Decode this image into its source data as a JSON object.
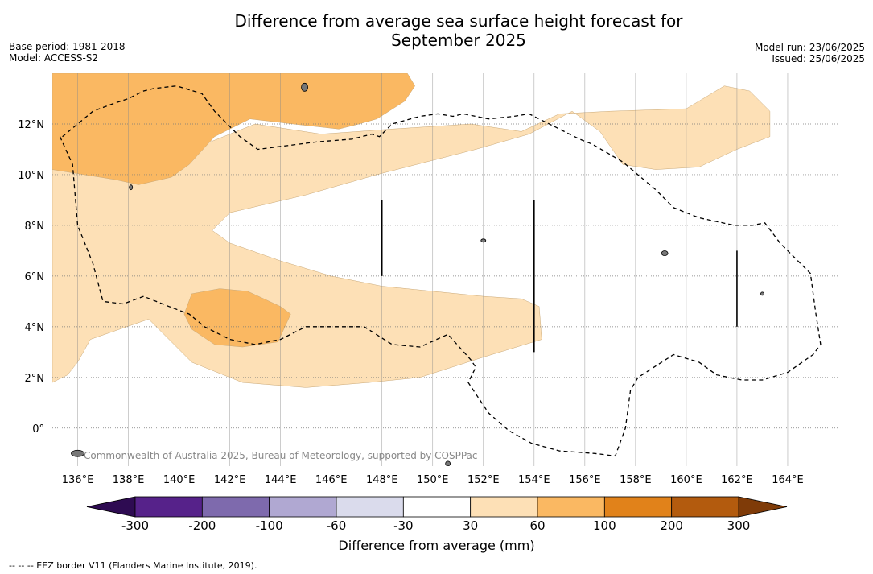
{
  "title_line1": "Difference from average sea surface height forecast for",
  "title_line2": "September 2025",
  "meta": {
    "base_period": "Base period: 1981-2018",
    "model": "Model: ACCESS-S2",
    "model_run": "Model run: 23/06/2025",
    "issued": "Issued: 25/06/2025"
  },
  "credit": "Commonwealth of Australia 2025, Bureau of Meteorology, supported by COSPPac",
  "footnote": "--  --  -- EEZ border V11 (Flanders Marine Institute, 2019).",
  "map": {
    "lon_range": [
      135,
      166
    ],
    "lat_range": [
      -1.5,
      14
    ],
    "lon_ticks": [
      {
        "value": 136,
        "label": "136°E"
      },
      {
        "value": 138,
        "label": "138°E"
      },
      {
        "value": 140,
        "label": "140°E"
      },
      {
        "value": 142,
        "label": "142°E"
      },
      {
        "value": 144,
        "label": "144°E"
      },
      {
        "value": 146,
        "label": "146°E"
      },
      {
        "value": 148,
        "label": "148°E"
      },
      {
        "value": 150,
        "label": "150°E"
      },
      {
        "value": 152,
        "label": "152°E"
      },
      {
        "value": 154,
        "label": "154°E"
      },
      {
        "value": 156,
        "label": "156°E"
      },
      {
        "value": 158,
        "label": "158°E"
      },
      {
        "value": 160,
        "label": "160°E"
      },
      {
        "value": 162,
        "label": "162°E"
      },
      {
        "value": 164,
        "label": "164°E"
      }
    ],
    "lat_ticks": [
      {
        "value": 0,
        "label": "0°"
      },
      {
        "value": 2,
        "label": "2°N"
      },
      {
        "value": 4,
        "label": "4°N"
      },
      {
        "value": 6,
        "label": "6°N"
      },
      {
        "value": 8,
        "label": "8°N"
      },
      {
        "value": 10,
        "label": "10°N"
      },
      {
        "value": 12,
        "label": "12°N"
      }
    ],
    "anomaly_zones": [
      {
        "class": "30 to 60",
        "color": "#fde0b6",
        "polygon": [
          [
            135,
            10.2
          ],
          [
            136,
            10.3
          ],
          [
            137.5,
            10.1
          ],
          [
            138.5,
            9.8
          ],
          [
            139.5,
            9.9
          ],
          [
            141,
            11.2
          ],
          [
            143,
            12
          ],
          [
            145.6,
            11.6
          ],
          [
            148.4,
            11.8
          ],
          [
            151.5,
            12
          ],
          [
            153.5,
            11.7
          ],
          [
            155,
            12.4
          ],
          [
            157,
            12.5
          ],
          [
            160,
            12.6
          ],
          [
            161.5,
            13.5
          ],
          [
            162.5,
            13.3
          ],
          [
            163.3,
            12.5
          ],
          [
            163.3,
            11.5
          ],
          [
            162,
            11
          ],
          [
            160.5,
            10.3
          ],
          [
            158.8,
            10.2
          ],
          [
            157.5,
            10.4
          ],
          [
            156.6,
            11.7
          ],
          [
            155.5,
            12.5
          ],
          [
            153.8,
            11.6
          ],
          [
            151.7,
            11
          ],
          [
            147.8,
            10
          ],
          [
            145,
            9.2
          ],
          [
            142,
            8.5
          ],
          [
            141.3,
            7.8
          ],
          [
            142,
            7.3
          ],
          [
            144,
            6.6
          ],
          [
            146,
            6
          ],
          [
            148,
            5.6
          ],
          [
            150,
            5.4
          ],
          [
            152,
            5.2
          ],
          [
            153.5,
            5.1
          ],
          [
            154.2,
            4.8
          ],
          [
            154.3,
            3.5
          ],
          [
            152,
            2.8
          ],
          [
            149.5,
            2
          ],
          [
            147.5,
            1.8
          ],
          [
            145,
            1.6
          ],
          [
            142.5,
            1.8
          ],
          [
            140.5,
            2.6
          ],
          [
            138.8,
            4.3
          ],
          [
            136.5,
            3.5
          ],
          [
            136,
            2.6
          ],
          [
            135.6,
            2.1
          ],
          [
            135,
            1.8
          ]
        ]
      },
      {
        "class": "60 to 100",
        "color": "#fab862",
        "polygon": [
          [
            135,
            14
          ],
          [
            149,
            14
          ],
          [
            149.3,
            13.5
          ],
          [
            148.9,
            12.9
          ],
          [
            147.8,
            12.2
          ],
          [
            147.1,
            12.0
          ],
          [
            146.3,
            11.8
          ],
          [
            144.5,
            12
          ],
          [
            142.8,
            12.2
          ],
          [
            141.4,
            11.5
          ],
          [
            140.4,
            10.4
          ],
          [
            139.7,
            9.9
          ],
          [
            138.4,
            9.6
          ],
          [
            137.5,
            9.8
          ],
          [
            135,
            10.2
          ]
        ]
      },
      {
        "class": "60 to 100",
        "color": "#fab862",
        "polygon": [
          [
            140.5,
            5.3
          ],
          [
            141.6,
            5.5
          ],
          [
            142.7,
            5.4
          ],
          [
            144,
            4.8
          ],
          [
            144.4,
            4.5
          ],
          [
            143.9,
            3.4
          ],
          [
            142.5,
            3.2
          ],
          [
            141.4,
            3.3
          ],
          [
            140.5,
            3.9
          ],
          [
            140.2,
            4.5
          ]
        ]
      }
    ],
    "eez_boundaries": [
      [
        [
          135.3,
          11.5
        ],
        [
          135.8,
          10.4
        ],
        [
          136,
          8
        ],
        [
          136.6,
          6.5
        ],
        [
          137,
          5
        ],
        [
          137.8,
          4.9
        ],
        [
          138.6,
          5.2
        ],
        [
          139.6,
          4.8
        ],
        [
          140.4,
          4.5
        ],
        [
          141,
          4
        ],
        [
          142,
          3.5
        ],
        [
          143,
          3.3
        ],
        [
          144,
          3.5
        ],
        [
          145,
          4
        ],
        [
          146,
          4
        ],
        [
          147.3,
          4
        ],
        [
          148.4,
          3.3
        ],
        [
          149.5,
          3.2
        ],
        [
          150.6,
          3.7
        ],
        [
          151.5,
          2.7
        ],
        [
          151.7,
          2.4
        ],
        [
          151.4,
          1.8
        ],
        [
          152.2,
          0.6
        ],
        [
          153,
          -0.1
        ],
        [
          153.9,
          -0.6
        ],
        [
          155,
          -0.9
        ],
        [
          156.4,
          -1
        ],
        [
          157.2,
          -1.1
        ],
        [
          157.6,
          0
        ],
        [
          157.8,
          1.5
        ],
        [
          158.1,
          2
        ],
        [
          159.5,
          2.9
        ],
        [
          160.5,
          2.6
        ],
        [
          161.2,
          2.1
        ],
        [
          162.2,
          1.9
        ],
        [
          163,
          1.9
        ],
        [
          164,
          2.2
        ],
        [
          165,
          2.9
        ],
        [
          165.3,
          3.3
        ],
        [
          165.1,
          4.6
        ],
        [
          164.9,
          6.1
        ],
        [
          163.7,
          7.3
        ],
        [
          163.1,
          8.1
        ],
        [
          162.6,
          8
        ],
        [
          161.9,
          8
        ],
        [
          160.5,
          8.3
        ],
        [
          159.5,
          8.7
        ],
        [
          158.8,
          9.4
        ],
        [
          157.5,
          10.5
        ],
        [
          156.3,
          11.2
        ],
        [
          155.8,
          11.4
        ],
        [
          154.6,
          12
        ],
        [
          153.8,
          12.4
        ],
        [
          153.2,
          12.3
        ],
        [
          152.2,
          12.2
        ],
        [
          151.2,
          12.4
        ],
        [
          150.8,
          12.3
        ],
        [
          150.2,
          12.4
        ],
        [
          149.5,
          12.3
        ],
        [
          148.4,
          12
        ],
        [
          147.9,
          11.5
        ],
        [
          147.6,
          11.6
        ],
        [
          146.8,
          11.4
        ],
        [
          145.5,
          11.3
        ],
        [
          143.9,
          11.1
        ],
        [
          143.1,
          11.0
        ],
        [
          142.4,
          11.5
        ],
        [
          141.4,
          12.5
        ],
        [
          140.9,
          13.2
        ],
        [
          139.9,
          13.5
        ],
        [
          139,
          13.4
        ],
        [
          138.6,
          13.3
        ],
        [
          138,
          13
        ],
        [
          137.4,
          12.8
        ],
        [
          136.6,
          12.5
        ],
        [
          136,
          12
        ],
        [
          135.4,
          11.5
        ]
      ]
    ],
    "dividers": [
      {
        "lon": 148,
        "lat_from": 6,
        "lat_to": 9
      },
      {
        "lon": 154,
        "lat_from": 3,
        "lat_to": 9
      },
      {
        "lon": 162,
        "lat_from": 4,
        "lat_to": 7
      }
    ],
    "islands": [
      {
        "lon": 144.95,
        "lat": 13.45,
        "rx": 4,
        "ry": 5
      },
      {
        "lon": 159.15,
        "lat": 6.9,
        "rx": 4,
        "ry": 3
      },
      {
        "lon": 152.0,
        "lat": 7.4,
        "rx": 3,
        "ry": 2
      },
      {
        "lon": 138.1,
        "lat": 9.5,
        "rx": 2,
        "ry": 3
      },
      {
        "lon": 163.0,
        "lat": 5.3,
        "rx": 2,
        "ry": 2
      },
      {
        "lon": 136.0,
        "lat": -1.0,
        "rx": 8,
        "ry": 4
      },
      {
        "lon": 150.6,
        "lat": -1.4,
        "rx": 3,
        "ry": 3
      }
    ]
  },
  "colorbar": {
    "title": "Difference from average (mm)",
    "ticks": [
      "-300",
      "-200",
      "-100",
      "-60",
      "-30",
      "30",
      "60",
      "100",
      "200",
      "300"
    ],
    "colors": [
      "#56228a",
      "#7e6aad",
      "#b0a8d2",
      "#dadbec",
      "#ffffff",
      "#fde0b6",
      "#fab862",
      "#e1821a",
      "#b35b0e"
    ],
    "under_color": "#2e0b52",
    "over_color": "#7f3b08"
  }
}
